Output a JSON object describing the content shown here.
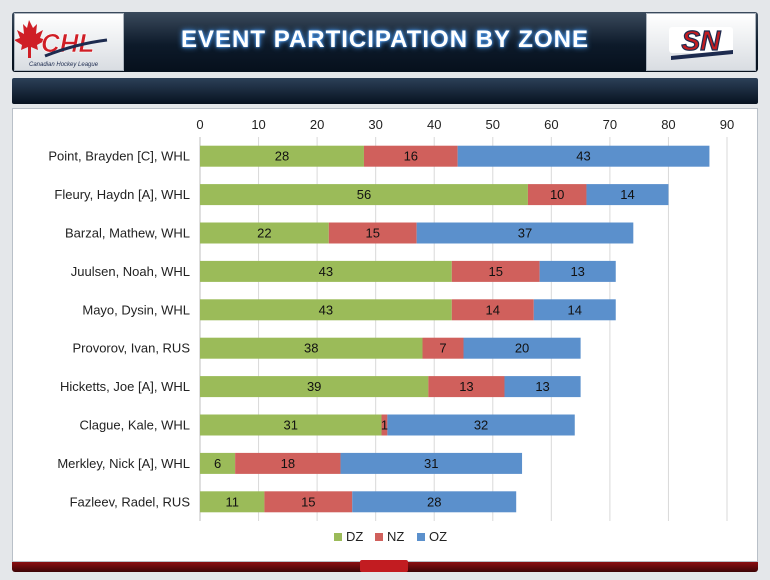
{
  "header": {
    "title": "EVENT PARTICIPATION BY ZONE",
    "left_logo_text": "CHL",
    "left_logo_subtext": "Canadian Hockey League",
    "right_logo_text": "SN"
  },
  "colors": {
    "DZ": "#9bbb59",
    "NZ": "#d0605c",
    "OZ": "#5b90cc",
    "header_dark": "#0d1a2a",
    "accent_red": "#c21c21"
  },
  "chart_data": {
    "type": "bar",
    "orientation": "horizontal",
    "stacked": true,
    "title": "",
    "xlabel": "",
    "ylabel": "",
    "xlim": [
      0,
      90
    ],
    "xticks": [
      0,
      10,
      20,
      30,
      40,
      50,
      60,
      70,
      80,
      90
    ],
    "grid": true,
    "legend_position": "bottom",
    "categories": [
      "Point, Brayden [C], WHL",
      "Fleury, Haydn [A], WHL",
      "Barzal, Mathew, WHL",
      "Juulsen, Noah, WHL",
      "Mayo, Dysin, WHL",
      "Provorov, Ivan, RUS",
      "Hicketts, Joe [A], WHL",
      "Clague, Kale, WHL",
      "Merkley, Nick [A], WHL",
      "Fazleev, Radel, RUS"
    ],
    "series": [
      {
        "name": "DZ",
        "values": [
          28,
          56,
          22,
          43,
          43,
          38,
          39,
          31,
          6,
          11
        ]
      },
      {
        "name": "NZ",
        "values": [
          16,
          10,
          15,
          15,
          14,
          7,
          13,
          1,
          18,
          15
        ]
      },
      {
        "name": "OZ",
        "values": [
          43,
          14,
          37,
          13,
          14,
          20,
          13,
          32,
          31,
          28
        ]
      }
    ]
  }
}
